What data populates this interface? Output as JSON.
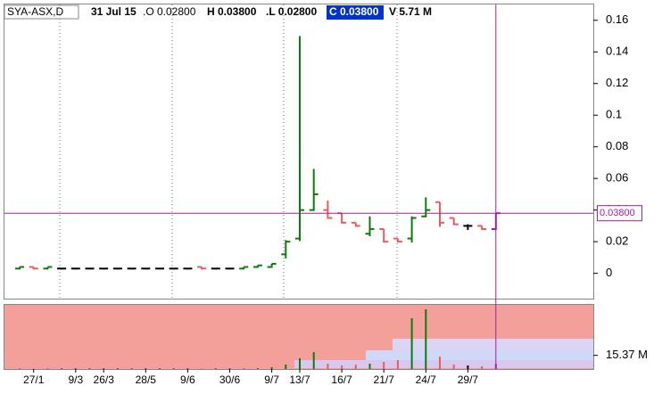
{
  "chart_data": [
    {
      "type": "ohlc",
      "header": {
        "symbol": "SYA-ASX,D",
        "date": "31 Jul 15",
        "open": ".O 0.02800",
        "high": "H 0.03800",
        "low": ".L 0.02800",
        "close": "C 0.03800",
        "volume": "V 5.71 M"
      },
      "price_label": "0.03800",
      "categories": [
        null,
        "27/1",
        null,
        null,
        "9/3",
        null,
        "26/3",
        null,
        null,
        "28/5",
        null,
        null,
        "9/6",
        null,
        null,
        "30/6",
        null,
        null,
        "9/7",
        null,
        "13/7",
        null,
        null,
        "16/7",
        null,
        null,
        "21/7",
        null,
        null,
        "24/7",
        null,
        null,
        "29/7",
        null,
        null
      ],
      "open": [
        0.003,
        0.004,
        0.003,
        0.003,
        0.003,
        0.003,
        0.003,
        0.003,
        0.003,
        0.003,
        0.003,
        0.003,
        0.003,
        0.004,
        0.003,
        0.003,
        0.003,
        0.004,
        0.004,
        0.012,
        0.022,
        0.04,
        0.04,
        0.038,
        0.032,
        0.025,
        0.028,
        0.022,
        0.022,
        0.036,
        0.045,
        0.035,
        0.03,
        0.03,
        0.028
      ],
      "high": [
        0.004,
        0.004,
        0.004,
        0.003,
        0.003,
        0.003,
        0.003,
        0.003,
        0.003,
        0.003,
        0.003,
        0.003,
        0.003,
        0.004,
        0.003,
        0.003,
        0.004,
        0.005,
        0.006,
        0.021,
        0.15,
        0.066,
        0.046,
        0.038,
        0.032,
        0.036,
        0.028,
        0.022,
        0.036,
        0.048,
        0.045,
        0.035,
        0.031,
        0.03,
        0.038
      ],
      "low": [
        0.003,
        0.003,
        0.003,
        0.003,
        0.003,
        0.003,
        0.003,
        0.003,
        0.003,
        0.003,
        0.003,
        0.003,
        0.003,
        0.003,
        0.003,
        0.003,
        0.003,
        0.004,
        0.004,
        0.01,
        0.021,
        0.04,
        0.035,
        0.032,
        0.03,
        0.024,
        0.02,
        0.02,
        0.02,
        0.036,
        0.03,
        0.031,
        0.028,
        0.028,
        0.028
      ],
      "close": [
        0.004,
        0.003,
        0.004,
        0.003,
        0.003,
        0.003,
        0.003,
        0.003,
        0.003,
        0.003,
        0.003,
        0.003,
        0.003,
        0.003,
        0.003,
        0.003,
        0.004,
        0.005,
        0.006,
        0.02,
        0.04,
        0.05,
        0.035,
        0.032,
        0.03,
        0.028,
        0.02,
        0.02,
        0.035,
        0.04,
        0.032,
        0.031,
        0.03,
        0.028,
        0.038
      ],
      "up_color": "#0b7d0b",
      "down_color": "#f05a5a",
      "flat_color": "#000000",
      "last_color": "#a020a0",
      "ylim": [
        -0.016,
        0.17
      ],
      "yticks": [
        0,
        0.02,
        0.04,
        0.06,
        0.08,
        0.1,
        0.12,
        0.14,
        0.16
      ]
    },
    {
      "type": "bar",
      "values": [
        0.5,
        0.5,
        0.5,
        0.5,
        0.5,
        0.5,
        0.5,
        0.5,
        0.5,
        0.5,
        0.5,
        0.5,
        0.5,
        0.5,
        0.5,
        0.5,
        0.5,
        1,
        2,
        5,
        12,
        19,
        6,
        4,
        5,
        6,
        8,
        10,
        57,
        67,
        14,
        5,
        4,
        3,
        5.71
      ],
      "ylim": [
        0,
        72
      ],
      "yticks": [
        {
          "value": 15.37,
          "label": "15.37 M"
        }
      ]
    }
  ]
}
